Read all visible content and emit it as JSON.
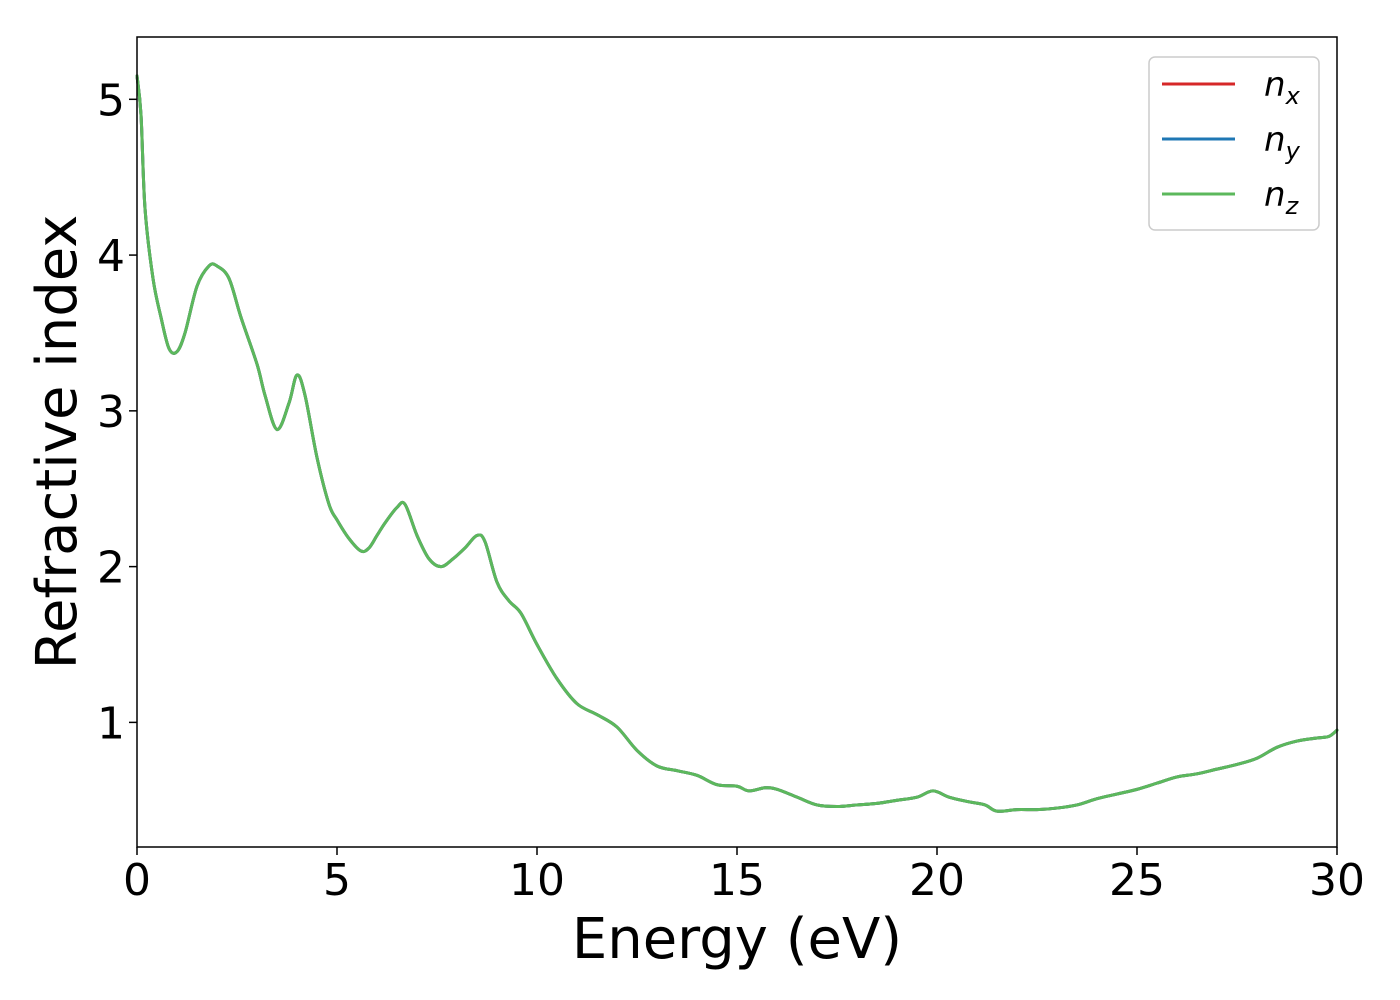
{
  "chart_data": {
    "type": "line",
    "title": "",
    "xlabel": "Energy (eV)",
    "ylabel": "Refractive index",
    "xlim": [
      0,
      30
    ],
    "ylim": [
      0.2,
      5.4
    ],
    "xticks": [
      0,
      5,
      10,
      15,
      20,
      25,
      30
    ],
    "xtick_labels": [
      "0",
      "5",
      "10",
      "15",
      "20",
      "25",
      "30"
    ],
    "yticks": [
      1,
      2,
      3,
      4,
      5
    ],
    "ytick_labels": [
      "1",
      "2",
      "3",
      "4",
      "5"
    ],
    "grid": false,
    "legend_position": "top-right",
    "x": [
      0,
      0.1,
      0.2,
      0.4,
      0.6,
      0.8,
      1.0,
      1.2,
      1.5,
      1.8,
      2.0,
      2.3,
      2.6,
      3.0,
      3.2,
      3.5,
      3.8,
      4.0,
      4.2,
      4.5,
      4.8,
      5.0,
      5.3,
      5.6,
      5.8,
      6.0,
      6.2,
      6.5,
      6.7,
      7.0,
      7.3,
      7.6,
      7.9,
      8.2,
      8.5,
      8.7,
      9.0,
      9.3,
      9.6,
      10.0,
      10.5,
      11.0,
      11.5,
      12.0,
      12.5,
      13.0,
      13.5,
      14.0,
      14.5,
      15.0,
      15.3,
      15.7,
      16.0,
      16.5,
      17.0,
      17.5,
      18.0,
      18.5,
      19.0,
      19.5,
      19.9,
      20.3,
      20.8,
      21.2,
      21.5,
      22.0,
      22.5,
      23.0,
      23.5,
      24.0,
      24.5,
      25.0,
      25.5,
      26.0,
      26.5,
      27.0,
      27.5,
      28.0,
      28.5,
      29.0,
      29.5,
      29.8,
      30.0
    ],
    "series": [
      {
        "name": "n_x",
        "label_main": "n",
        "label_sub": "x",
        "color": "#d62728",
        "y": [
          5.15,
          4.9,
          4.3,
          3.85,
          3.6,
          3.4,
          3.38,
          3.5,
          3.8,
          3.93,
          3.93,
          3.85,
          3.6,
          3.3,
          3.1,
          2.88,
          3.05,
          3.23,
          3.1,
          2.7,
          2.4,
          2.3,
          2.18,
          2.1,
          2.12,
          2.2,
          2.28,
          2.38,
          2.4,
          2.2,
          2.05,
          2.0,
          2.05,
          2.12,
          2.2,
          2.16,
          1.9,
          1.78,
          1.7,
          1.5,
          1.28,
          1.12,
          1.05,
          0.97,
          0.82,
          0.72,
          0.69,
          0.66,
          0.6,
          0.59,
          0.56,
          0.58,
          0.57,
          0.52,
          0.47,
          0.46,
          0.47,
          0.48,
          0.5,
          0.52,
          0.56,
          0.52,
          0.49,
          0.47,
          0.43,
          0.44,
          0.44,
          0.45,
          0.47,
          0.51,
          0.54,
          0.57,
          0.61,
          0.65,
          0.67,
          0.7,
          0.73,
          0.77,
          0.84,
          0.88,
          0.9,
          0.91,
          0.95
        ]
      },
      {
        "name": "n_y",
        "label_main": "n",
        "label_sub": "y",
        "color": "#1f77b4",
        "y": [
          5.15,
          4.9,
          4.3,
          3.85,
          3.6,
          3.4,
          3.38,
          3.5,
          3.8,
          3.93,
          3.93,
          3.85,
          3.6,
          3.3,
          3.1,
          2.88,
          3.05,
          3.23,
          3.1,
          2.7,
          2.4,
          2.3,
          2.18,
          2.1,
          2.12,
          2.2,
          2.28,
          2.38,
          2.4,
          2.2,
          2.05,
          2.0,
          2.05,
          2.12,
          2.2,
          2.16,
          1.9,
          1.78,
          1.7,
          1.5,
          1.28,
          1.12,
          1.05,
          0.97,
          0.82,
          0.72,
          0.69,
          0.66,
          0.6,
          0.59,
          0.56,
          0.58,
          0.57,
          0.52,
          0.47,
          0.46,
          0.47,
          0.48,
          0.5,
          0.52,
          0.56,
          0.52,
          0.49,
          0.47,
          0.43,
          0.44,
          0.44,
          0.45,
          0.47,
          0.51,
          0.54,
          0.57,
          0.61,
          0.65,
          0.67,
          0.7,
          0.73,
          0.77,
          0.84,
          0.88,
          0.9,
          0.91,
          0.95
        ]
      },
      {
        "name": "n_z",
        "label_main": "n",
        "label_sub": "z",
        "color": "#5cb85c",
        "y": [
          5.15,
          4.9,
          4.3,
          3.85,
          3.6,
          3.4,
          3.38,
          3.5,
          3.8,
          3.93,
          3.93,
          3.85,
          3.6,
          3.3,
          3.1,
          2.88,
          3.05,
          3.23,
          3.1,
          2.7,
          2.4,
          2.3,
          2.18,
          2.1,
          2.12,
          2.2,
          2.28,
          2.38,
          2.4,
          2.2,
          2.05,
          2.0,
          2.05,
          2.12,
          2.2,
          2.16,
          1.9,
          1.78,
          1.7,
          1.5,
          1.28,
          1.12,
          1.05,
          0.97,
          0.82,
          0.72,
          0.69,
          0.66,
          0.6,
          0.59,
          0.56,
          0.58,
          0.57,
          0.52,
          0.47,
          0.46,
          0.47,
          0.48,
          0.5,
          0.52,
          0.56,
          0.52,
          0.49,
          0.47,
          0.43,
          0.44,
          0.44,
          0.45,
          0.47,
          0.51,
          0.54,
          0.57,
          0.61,
          0.65,
          0.67,
          0.7,
          0.73,
          0.77,
          0.84,
          0.88,
          0.9,
          0.91,
          0.95
        ]
      }
    ]
  }
}
